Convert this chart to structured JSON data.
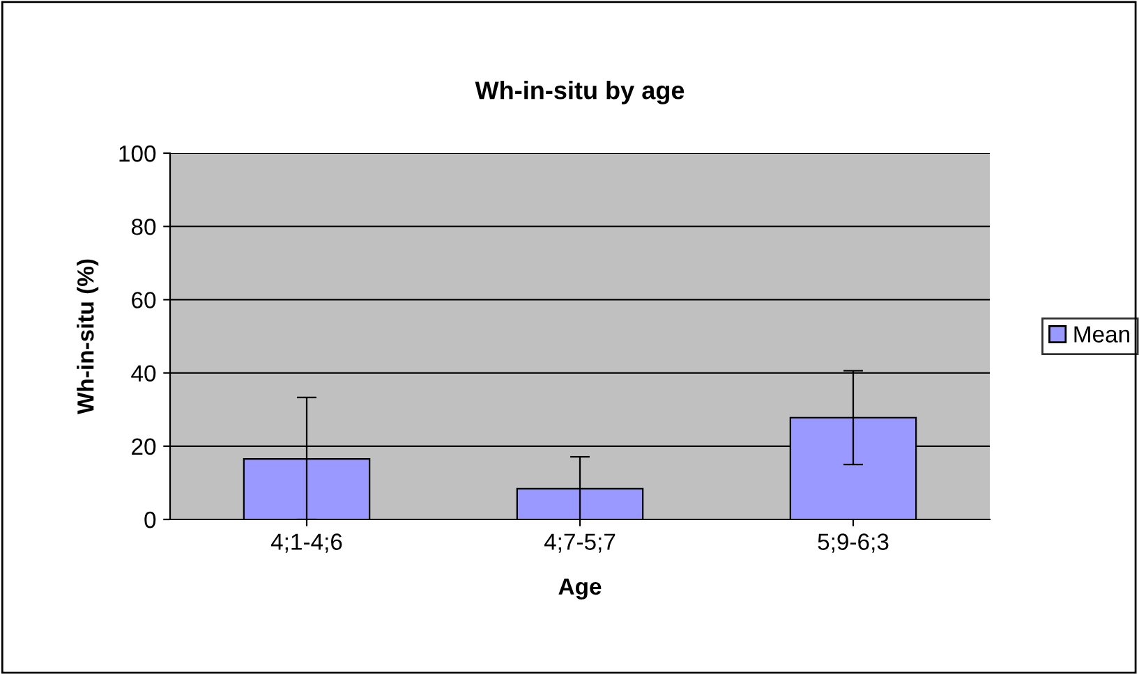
{
  "chart_data": {
    "type": "bar",
    "title": "Wh-in-situ by age",
    "xlabel": "Age",
    "ylabel": "Wh-in-situ (%)",
    "categories": [
      "4;1-4;6",
      "4;7-5;7",
      "5;9-6;3"
    ],
    "series": [
      {
        "name": "Mean",
        "color": "#9999ff",
        "values": [
          16.5,
          8.4,
          27.8
        ],
        "errors": [
          [
            0,
            33.3
          ],
          8.7,
          12.8
        ]
      }
    ],
    "ylim": [
      0,
      100
    ],
    "yticks": [
      0,
      20,
      40,
      60,
      80,
      100
    ],
    "grid": "y",
    "legend": "right"
  }
}
